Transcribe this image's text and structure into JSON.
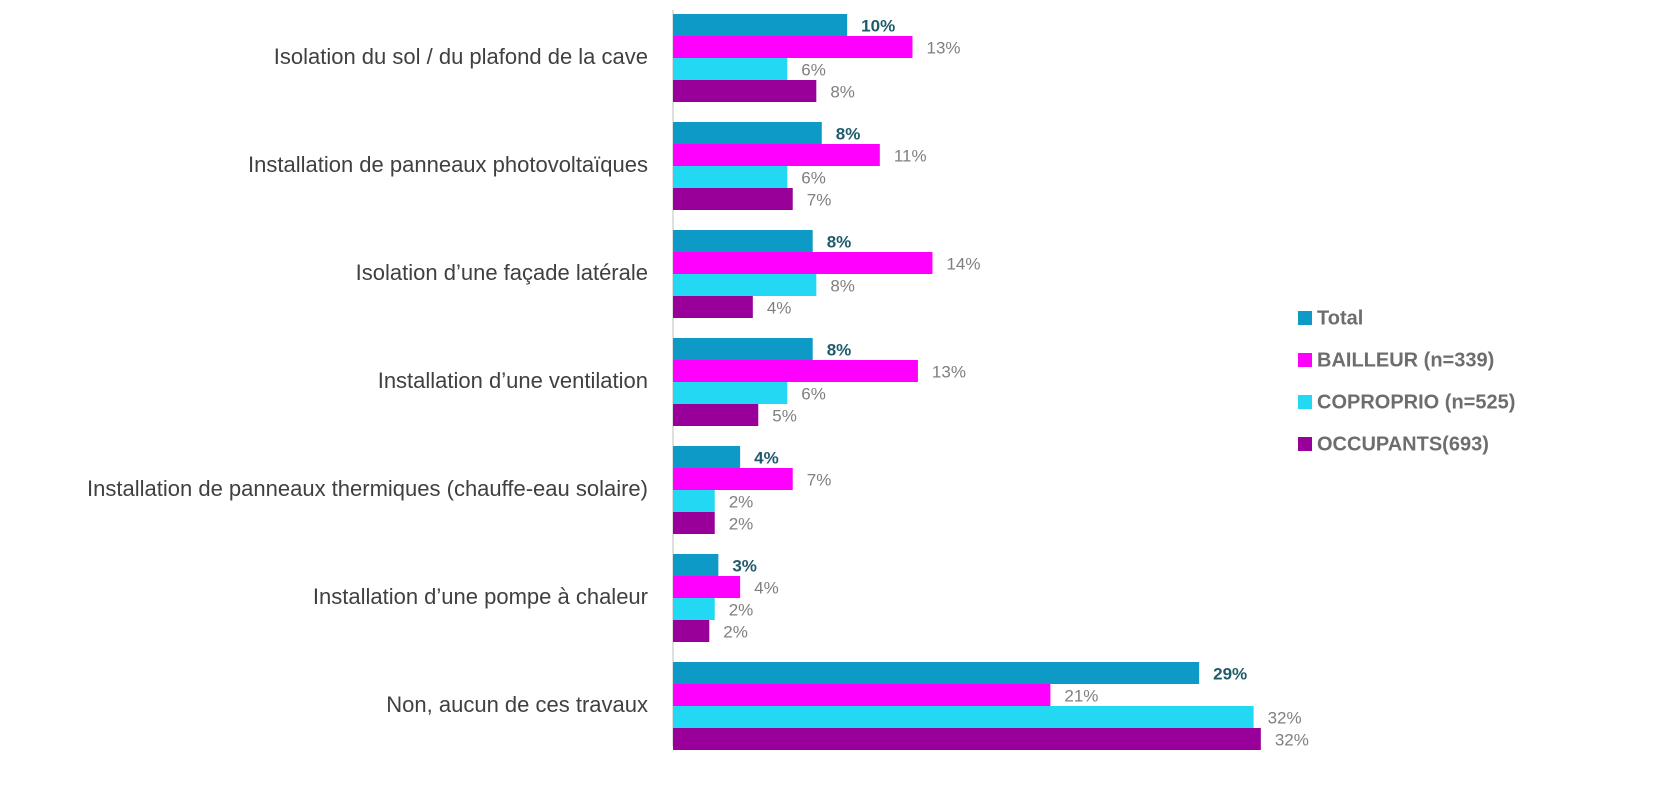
{
  "chart_data": {
    "type": "hbar",
    "categories": [
      "Isolation du sol / du plafond de la cave",
      "Installation de panneaux photovoltaïques",
      "Isolation d’une façade latérale",
      "Installation d’une ventilation",
      "Installation de panneaux thermiques (chauffe-eau solaire)",
      "Installation d’une pompe à chaleur",
      "Non, aucun de ces travaux"
    ],
    "series": [
      {
        "name": "Total",
        "color": "#0e9ac6",
        "values": [
          9.6,
          8.2,
          7.7,
          7.7,
          3.7,
          2.5,
          29.0
        ],
        "value_labels": [
          "10%",
          "8%",
          "8%",
          "8%",
          "4%",
          "3%",
          "29%"
        ]
      },
      {
        "name": "BAILLEUR (n=339)",
        "color": "#ff00ff",
        "values": [
          13.2,
          11.4,
          14.3,
          13.5,
          6.6,
          3.7,
          20.8
        ],
        "value_labels": [
          "13%",
          "11%",
          "14%",
          "13%",
          "7%",
          "4%",
          "21%"
        ]
      },
      {
        "name": "COPROPRIO (n=525)",
        "color": "#22d8f2",
        "values": [
          6.3,
          6.3,
          7.9,
          6.3,
          2.3,
          2.3,
          32.0
        ],
        "value_labels": [
          "6%",
          "6%",
          "8%",
          "6%",
          "2%",
          "2%",
          "32%"
        ]
      },
      {
        "name": "OCCUPANTS(693)",
        "color": "#990099",
        "values": [
          7.9,
          6.6,
          4.4,
          4.7,
          2.3,
          2.0,
          32.4
        ],
        "value_labels": [
          "8%",
          "7%",
          "4%",
          "5%",
          "2%",
          "2%",
          "32%"
        ]
      }
    ],
    "xlim": [
      0,
      35
    ],
    "legend": "right"
  }
}
